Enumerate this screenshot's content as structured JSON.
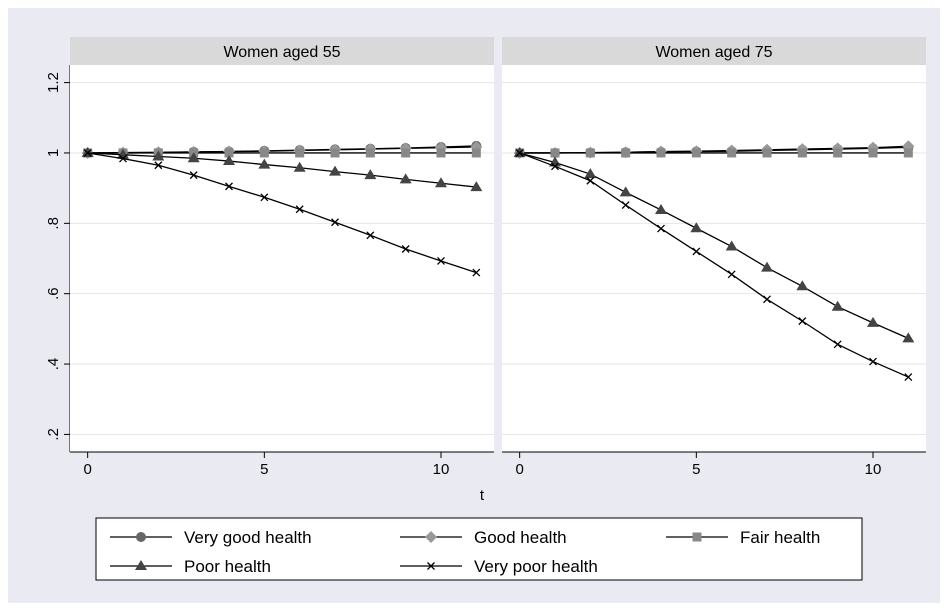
{
  "chart_data": {
    "type": "line",
    "xlabel": "t",
    "ylabel": "",
    "xlim": [
      -0.5,
      11.5
    ],
    "ylim": [
      0.15,
      1.25
    ],
    "x_ticks": [
      0,
      5,
      10
    ],
    "x_tick_labels": [
      "0",
      "5",
      "10"
    ],
    "y_ticks": [
      0.2,
      0.4,
      0.6,
      0.8,
      1.0,
      1.2
    ],
    "y_tick_labels": [
      ".2",
      ".4",
      ".6",
      ".8",
      "1",
      "1.2"
    ],
    "grid": true,
    "legend_position": "bottom",
    "legend_order": [
      0,
      1,
      2,
      3,
      4
    ],
    "x": [
      0,
      1,
      2,
      3,
      4,
      5,
      6,
      7,
      8,
      9,
      10,
      11
    ],
    "panels": [
      {
        "title": "Women aged 55",
        "series": [
          {
            "name": "Very good health",
            "marker": "circle",
            "color": "#666666",
            "values": [
              1.0,
              1.0,
              1.001,
              1.003,
              1.004,
              1.006,
              1.008,
              1.01,
              1.012,
              1.014,
              1.017,
              1.02
            ]
          },
          {
            "name": "Good health",
            "marker": "diamond",
            "color": "#999999",
            "values": [
              1.0,
              1.001,
              1.002,
              1.003,
              1.004,
              1.005,
              1.007,
              1.009,
              1.011,
              1.013,
              1.015,
              1.017
            ]
          },
          {
            "name": "Fair health",
            "marker": "square",
            "color": "#888888",
            "values": [
              1.0,
              1.0,
              1.0,
              1.0,
              1.0,
              1.0,
              1.0,
              1.0,
              1.0,
              1.0,
              1.0,
              1.0
            ]
          },
          {
            "name": "Poor health",
            "marker": "triangle",
            "color": "#444444",
            "values": [
              1.0,
              0.995,
              0.99,
              0.985,
              0.977,
              0.967,
              0.958,
              0.947,
              0.937,
              0.925,
              0.914,
              0.903
            ]
          },
          {
            "name": "Very poor health",
            "marker": "x",
            "color": "#000000",
            "values": [
              1.0,
              0.984,
              0.965,
              0.937,
              0.905,
              0.874,
              0.84,
              0.803,
              0.766,
              0.727,
              0.693,
              0.66
            ]
          }
        ]
      },
      {
        "title": "Women aged 75",
        "series": [
          {
            "name": "Very good health",
            "marker": "circle",
            "color": "#666666",
            "values": [
              1.0,
              1.0,
              1.001,
              1.002,
              1.003,
              1.004,
              1.005,
              1.007,
              1.009,
              1.011,
              1.013,
              1.016
            ]
          },
          {
            "name": "Good health",
            "marker": "diamond",
            "color": "#999999",
            "values": [
              1.0,
              1.0,
              1.001,
              1.002,
              1.004,
              1.005,
              1.007,
              1.009,
              1.011,
              1.013,
              1.015,
              1.019
            ]
          },
          {
            "name": "Fair health",
            "marker": "square",
            "color": "#888888",
            "values": [
              1.0,
              1.0,
              1.0,
              1.0,
              1.0,
              1.0,
              1.0,
              1.0,
              1.0,
              1.0,
              1.0,
              1.0
            ]
          },
          {
            "name": "Poor health",
            "marker": "triangle",
            "color": "#444444",
            "values": [
              1.0,
              0.973,
              0.94,
              0.888,
              0.838,
              0.786,
              0.734,
              0.674,
              0.621,
              0.563,
              0.517,
              0.473
            ]
          },
          {
            "name": "Very poor health",
            "marker": "x",
            "color": "#000000",
            "values": [
              1.0,
              0.962,
              0.921,
              0.852,
              0.785,
              0.72,
              0.655,
              0.584,
              0.522,
              0.456,
              0.407,
              0.363
            ]
          }
        ]
      }
    ]
  },
  "colors": {
    "background": "#ffffff",
    "figure_bg": "#eaeaf2",
    "panel_bg": "#ffffff",
    "panel_title_bg": "#d9d9d9",
    "grid": "#e6e6e6",
    "axis_line": "#000000",
    "line": "#000000"
  }
}
